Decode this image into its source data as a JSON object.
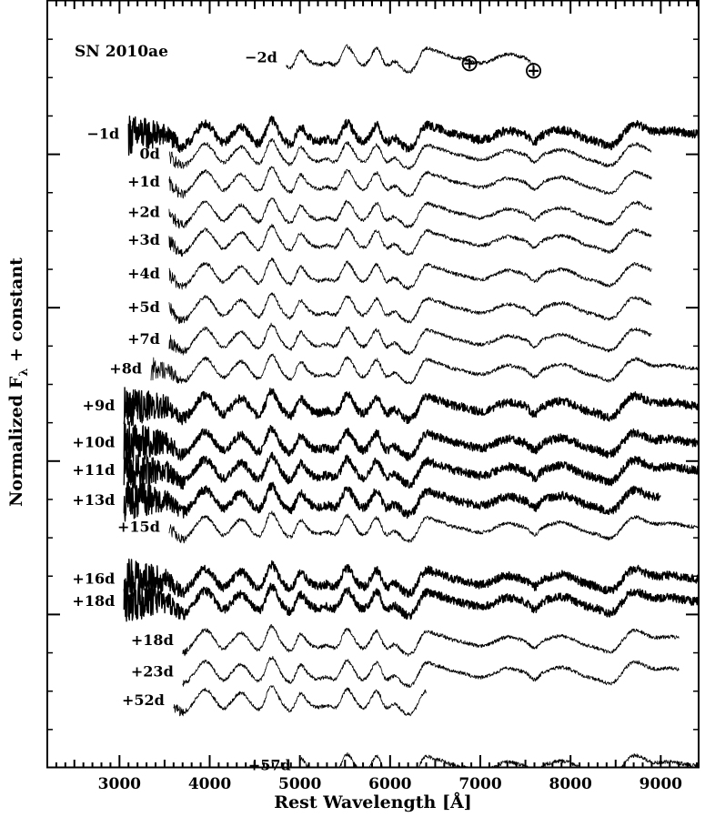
{
  "chart_data": {
    "type": "line",
    "title": "SN 2010ae",
    "xlabel": "Rest Wavelength [Å]",
    "ylabel": "Normalized F",
    "ylabel_subscript": "λ",
    "ylabel_suffix": " + constant",
    "xlim": [
      2200,
      9420
    ],
    "ylim": [
      0,
      100
    ],
    "x_ticks": [
      3000,
      4000,
      5000,
      6000,
      7000,
      8000,
      9000
    ],
    "y_major_ticks": [
      20,
      40,
      60,
      80
    ],
    "grid": false,
    "telluric_markers": [
      {
        "symbol": "⊕",
        "x": 6880
      },
      {
        "symbol": "⊕",
        "x": 7590
      }
    ],
    "series": [
      {
        "name": "-2d",
        "label": "−2d",
        "x_range": [
          4850,
          7600
        ],
        "offset": 92.6,
        "thick": false
      },
      {
        "name": "-1d",
        "label": "−1d",
        "x_range": [
          3100,
          9420
        ],
        "offset": 82.6,
        "thick": true
      },
      {
        "name": "0d",
        "label": "0d",
        "x_range": [
          3550,
          8900
        ],
        "offset": 80.0,
        "thick": false
      },
      {
        "name": "+1d",
        "label": "+1d",
        "x_range": [
          3550,
          8900
        ],
        "offset": 76.4,
        "thick": false
      },
      {
        "name": "+2d",
        "label": "+2d",
        "x_range": [
          3550,
          8900
        ],
        "offset": 72.4,
        "thick": false
      },
      {
        "name": "+3d",
        "label": "+3d",
        "x_range": [
          3550,
          8900
        ],
        "offset": 68.8,
        "thick": false
      },
      {
        "name": "+4d",
        "label": "+4d",
        "x_range": [
          3550,
          8900
        ],
        "offset": 64.4,
        "thick": false
      },
      {
        "name": "+5d",
        "label": "+5d",
        "x_range": [
          3550,
          8900
        ],
        "offset": 60.0,
        "thick": false
      },
      {
        "name": "+7d",
        "label": "+7d",
        "x_range": [
          3550,
          8900
        ],
        "offset": 55.9,
        "thick": false
      },
      {
        "name": "+8d",
        "label": "+8d",
        "x_range": [
          3350,
          9420
        ],
        "offset": 52.0,
        "thick": false
      },
      {
        "name": "+9d",
        "label": "+9d",
        "x_range": [
          3050,
          9420
        ],
        "offset": 47.2,
        "thick": true
      },
      {
        "name": "+10d",
        "label": "+10d",
        "x_range": [
          3050,
          9420
        ],
        "offset": 42.4,
        "thick": true
      },
      {
        "name": "+11d",
        "label": "+11d",
        "x_range": [
          3050,
          9420
        ],
        "offset": 38.8,
        "thick": true
      },
      {
        "name": "+13d",
        "label": "+13d",
        "x_range": [
          3050,
          9000
        ],
        "offset": 34.9,
        "thick": true
      },
      {
        "name": "+15d",
        "label": "+15d",
        "x_range": [
          3550,
          9420
        ],
        "offset": 31.4,
        "thick": false
      },
      {
        "name": "+16d",
        "label": "+16d",
        "x_range": [
          3050,
          9420
        ],
        "offset": 24.6,
        "thick": true
      },
      {
        "name": "+18d",
        "label": "+18d",
        "x_range": [
          3050,
          9420
        ],
        "offset": 21.7,
        "thick": true
      },
      {
        "name": "+18d-b",
        "label": "+18d",
        "x_range": [
          3700,
          9200
        ],
        "offset": 16.6,
        "thick": false
      },
      {
        "name": "+23d",
        "label": "+23d",
        "x_range": [
          3700,
          9200
        ],
        "offset": 12.5,
        "thick": false
      },
      {
        "name": "+52d",
        "label": "+52d",
        "x_range": [
          3600,
          6400
        ],
        "offset": 8.8,
        "thick": false
      },
      {
        "name": "+57d",
        "label": "+57d",
        "x_range": [
          5000,
          9420
        ],
        "offset": 0.3,
        "thick": false
      }
    ]
  }
}
